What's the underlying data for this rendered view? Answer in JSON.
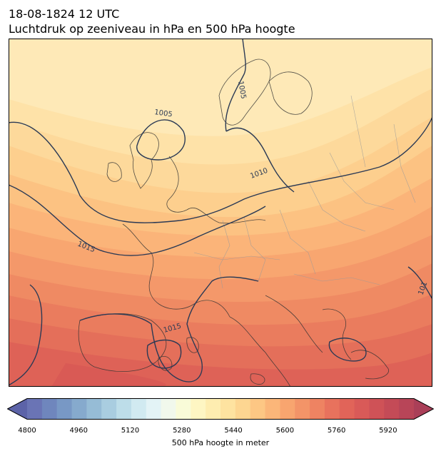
{
  "title": {
    "line1": "18-08-1824 12 UTC",
    "line2": "Luchtdruk op zeeniveau in hPa en 500 hPa hoogte"
  },
  "map": {
    "region": "Europe",
    "filled_field": "500 hPa geopotential height (m)",
    "isobar_labels": [
      "1005",
      "1005",
      "1010",
      "1015",
      "1015",
      "101"
    ],
    "colors": {
      "isobar": "#2b3a55",
      "coast": "#333333",
      "border": "#9a9a9a",
      "band_low_north": "#fee8b4",
      "band_high_south": "#de5a5a"
    }
  },
  "colorbar": {
    "label": "500 hPa hoogte in meter",
    "min": 4800,
    "max": 5960,
    "step": 40,
    "tick_labels": [
      "4800",
      "4960",
      "5120",
      "5280",
      "5440",
      "5600",
      "5760",
      "5920"
    ],
    "extend": "both",
    "colormap": "blue-yellow-red (RdYlBu reversed)"
  }
}
